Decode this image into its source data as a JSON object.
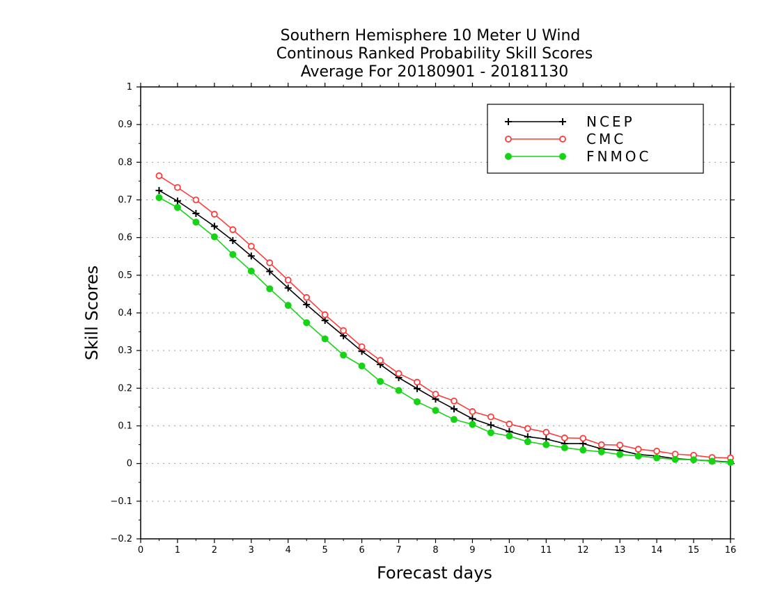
{
  "chart_data": {
    "type": "line",
    "title": [
      "Southern Hemisphere 10 Meter U Wind",
      "Continous Ranked Probability Skill Scores",
      "Average For 20180901 - 20181130"
    ],
    "xlabel": "Forecast days",
    "ylabel": "Skill Scores",
    "xlim": [
      0,
      16
    ],
    "ylim": [
      -0.2,
      1
    ],
    "xticks": [
      0,
      1,
      2,
      3,
      4,
      5,
      6,
      7,
      8,
      9,
      10,
      11,
      12,
      13,
      14,
      15,
      16
    ],
    "xtick_labels": [
      "0",
      "1",
      "2",
      "3",
      "4",
      "5",
      "6",
      "7",
      "8",
      "9",
      "10",
      "11",
      "12",
      "13",
      "14",
      "15",
      "16"
    ],
    "yticks": [
      -0.2,
      -0.1,
      0,
      0.1,
      0.2,
      0.3,
      0.4,
      0.5,
      0.6,
      0.7,
      0.8,
      0.9,
      1
    ],
    "ytick_labels": [
      "−0.2",
      "−0.1",
      "0",
      "0.1",
      "0.2",
      "0.3",
      "0.4",
      "0.5",
      "0.6",
      "0.7",
      "0.8",
      "0.9",
      "1"
    ],
    "grid": "horizontal-dotted",
    "legend_position": "top-right",
    "x": [
      0.5,
      1,
      1.5,
      2,
      2.5,
      3,
      3.5,
      4,
      4.5,
      5,
      5.5,
      6,
      6.5,
      7,
      7.5,
      8,
      8.5,
      9,
      9.5,
      10,
      10.5,
      11,
      11.5,
      12,
      12.5,
      13,
      13.5,
      14,
      14.5,
      15,
      15.5,
      16
    ],
    "series": [
      {
        "name": "NCEP",
        "color": "#000000",
        "marker": "plus",
        "values": [
          0.725,
          0.697,
          0.664,
          0.63,
          0.592,
          0.551,
          0.51,
          0.466,
          0.422,
          0.38,
          0.339,
          0.298,
          0.263,
          0.228,
          0.199,
          0.171,
          0.145,
          0.119,
          0.102,
          0.085,
          0.071,
          0.065,
          0.053,
          0.053,
          0.039,
          0.035,
          0.024,
          0.02,
          0.013,
          0.01,
          0.007,
          0.004
        ]
      },
      {
        "name": "CMC",
        "color": "#ff3a3a",
        "marker": "open-circle",
        "values": [
          0.764,
          0.733,
          0.7,
          0.662,
          0.621,
          0.577,
          0.533,
          0.487,
          0.441,
          0.395,
          0.353,
          0.31,
          0.274,
          0.239,
          0.216,
          0.184,
          0.166,
          0.138,
          0.124,
          0.105,
          0.093,
          0.083,
          0.068,
          0.067,
          0.05,
          0.049,
          0.038,
          0.033,
          0.025,
          0.022,
          0.016,
          0.015
        ]
      },
      {
        "name": "FNMOC",
        "color": "#14d414",
        "marker": "filled-circle",
        "values": [
          0.706,
          0.68,
          0.641,
          0.602,
          0.555,
          0.511,
          0.464,
          0.42,
          0.374,
          0.331,
          0.288,
          0.259,
          0.218,
          0.194,
          0.164,
          0.141,
          0.117,
          0.104,
          0.082,
          0.073,
          0.058,
          0.05,
          0.042,
          0.036,
          0.031,
          0.024,
          0.02,
          0.015,
          0.011,
          0.01,
          0.006,
          0.003
        ]
      }
    ]
  }
}
